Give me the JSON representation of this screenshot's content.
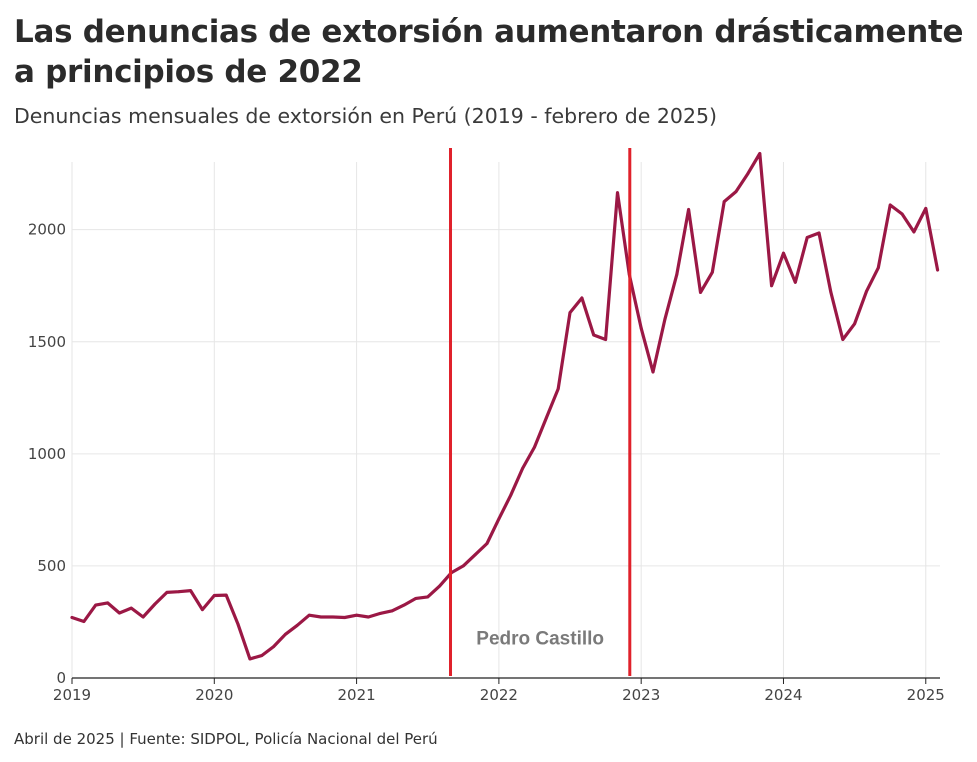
{
  "chart_data": {
    "type": "line",
    "title": "Las denuncias de extorsión aumentaron drásticamente a principios de 2022",
    "subtitle": "Denuncias mensuales de extorsión en Perú (2019 - febrero de 2025)",
    "source": "Abril de 2025 | Fuente: SIDPOL, Policía Nacional del Perú",
    "xlabel": "",
    "ylabel": "",
    "xlim": [
      2019.0,
      2025.1
    ],
    "ylim": [
      0,
      2400
    ],
    "y_ticks": [
      0,
      500,
      1000,
      1500,
      2000
    ],
    "x_ticks": [
      2019,
      2020,
      2021,
      2022,
      2023,
      2024,
      2025
    ],
    "x_tick_labels": [
      "2019",
      "2020",
      "2021",
      "2022",
      "2023",
      "2024",
      "2025"
    ],
    "y_tick_labels": [
      "0",
      "500",
      "1000",
      "1500",
      "2000"
    ],
    "grid": true,
    "series": [
      {
        "name": "Denuncias mensuales de extorsión",
        "color": "#9b1845",
        "start": "2019-01",
        "values": [
          270,
          252,
          325,
          335,
          290,
          312,
          272,
          330,
          382,
          385,
          390,
          305,
          368,
          370,
          240,
          85,
          100,
          140,
          195,
          235,
          280,
          272,
          272,
          270,
          280,
          272,
          288,
          300,
          325,
          355,
          362,
          410,
          470,
          500,
          550,
          600,
          710,
          815,
          935,
          1030,
          1160,
          1290,
          1630,
          1695,
          1530,
          1510,
          2165,
          1800,
          1560,
          1365,
          1600,
          1800,
          2090,
          1720,
          1810,
          2125,
          2170,
          2250,
          2340,
          1750,
          1895,
          1765,
          1965,
          1985,
          1720,
          1510,
          1580,
          1725,
          1830,
          2110,
          2070,
          1990,
          2095,
          1820
        ]
      }
    ],
    "annotations": [
      {
        "type": "vline",
        "x": 2021.66,
        "color": "#e0212b"
      },
      {
        "type": "vline",
        "x": 2022.92,
        "color": "#e0212b"
      },
      {
        "type": "label",
        "text": "Pedro Castillo",
        "x": 2022.29,
        "y": 150,
        "color": "#7a7a7a"
      }
    ]
  }
}
